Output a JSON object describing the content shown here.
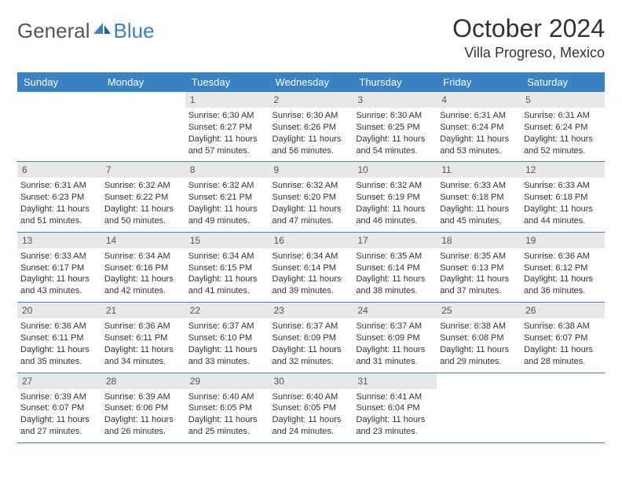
{
  "logo": {
    "text1": "General",
    "text2": "Blue"
  },
  "title": "October 2024",
  "location": "Villa Progreso, Mexico",
  "colors": {
    "header_bg": "#3b82c4",
    "header_text": "#ffffff",
    "daynum_bg": "#e8e8e8",
    "text": "#333333",
    "logo_gray": "#555555",
    "logo_blue": "#3b82c4",
    "border": "#3b82c4",
    "page_bg": "#ffffff"
  },
  "typography": {
    "title_fontsize": 32,
    "location_fontsize": 18,
    "logo_fontsize": 26,
    "header_fontsize": 13,
    "daynum_fontsize": 12,
    "body_fontsize": 11
  },
  "days_of_week": [
    "Sunday",
    "Monday",
    "Tuesday",
    "Wednesday",
    "Thursday",
    "Friday",
    "Saturday"
  ],
  "weeks": [
    [
      {
        "n": "",
        "lines": []
      },
      {
        "n": "",
        "lines": []
      },
      {
        "n": "1",
        "lines": [
          "Sunrise: 6:30 AM",
          "Sunset: 6:27 PM",
          "Daylight: 11 hours",
          "and 57 minutes."
        ]
      },
      {
        "n": "2",
        "lines": [
          "Sunrise: 6:30 AM",
          "Sunset: 6:26 PM",
          "Daylight: 11 hours",
          "and 56 minutes."
        ]
      },
      {
        "n": "3",
        "lines": [
          "Sunrise: 6:30 AM",
          "Sunset: 6:25 PM",
          "Daylight: 11 hours",
          "and 54 minutes."
        ]
      },
      {
        "n": "4",
        "lines": [
          "Sunrise: 6:31 AM",
          "Sunset: 6:24 PM",
          "Daylight: 11 hours",
          "and 53 minutes."
        ]
      },
      {
        "n": "5",
        "lines": [
          "Sunrise: 6:31 AM",
          "Sunset: 6:24 PM",
          "Daylight: 11 hours",
          "and 52 minutes."
        ]
      }
    ],
    [
      {
        "n": "6",
        "lines": [
          "Sunrise: 6:31 AM",
          "Sunset: 6:23 PM",
          "Daylight: 11 hours",
          "and 51 minutes."
        ]
      },
      {
        "n": "7",
        "lines": [
          "Sunrise: 6:32 AM",
          "Sunset: 6:22 PM",
          "Daylight: 11 hours",
          "and 50 minutes."
        ]
      },
      {
        "n": "8",
        "lines": [
          "Sunrise: 6:32 AM",
          "Sunset: 6:21 PM",
          "Daylight: 11 hours",
          "and 49 minutes."
        ]
      },
      {
        "n": "9",
        "lines": [
          "Sunrise: 6:32 AM",
          "Sunset: 6:20 PM",
          "Daylight: 11 hours",
          "and 47 minutes."
        ]
      },
      {
        "n": "10",
        "lines": [
          "Sunrise: 6:32 AM",
          "Sunset: 6:19 PM",
          "Daylight: 11 hours",
          "and 46 minutes."
        ]
      },
      {
        "n": "11",
        "lines": [
          "Sunrise: 6:33 AM",
          "Sunset: 6:18 PM",
          "Daylight: 11 hours",
          "and 45 minutes."
        ]
      },
      {
        "n": "12",
        "lines": [
          "Sunrise: 6:33 AM",
          "Sunset: 6:18 PM",
          "Daylight: 11 hours",
          "and 44 minutes."
        ]
      }
    ],
    [
      {
        "n": "13",
        "lines": [
          "Sunrise: 6:33 AM",
          "Sunset: 6:17 PM",
          "Daylight: 11 hours",
          "and 43 minutes."
        ]
      },
      {
        "n": "14",
        "lines": [
          "Sunrise: 6:34 AM",
          "Sunset: 6:16 PM",
          "Daylight: 11 hours",
          "and 42 minutes."
        ]
      },
      {
        "n": "15",
        "lines": [
          "Sunrise: 6:34 AM",
          "Sunset: 6:15 PM",
          "Daylight: 11 hours",
          "and 41 minutes."
        ]
      },
      {
        "n": "16",
        "lines": [
          "Sunrise: 6:34 AM",
          "Sunset: 6:14 PM",
          "Daylight: 11 hours",
          "and 39 minutes."
        ]
      },
      {
        "n": "17",
        "lines": [
          "Sunrise: 6:35 AM",
          "Sunset: 6:14 PM",
          "Daylight: 11 hours",
          "and 38 minutes."
        ]
      },
      {
        "n": "18",
        "lines": [
          "Sunrise: 6:35 AM",
          "Sunset: 6:13 PM",
          "Daylight: 11 hours",
          "and 37 minutes."
        ]
      },
      {
        "n": "19",
        "lines": [
          "Sunrise: 6:36 AM",
          "Sunset: 6:12 PM",
          "Daylight: 11 hours",
          "and 36 minutes."
        ]
      }
    ],
    [
      {
        "n": "20",
        "lines": [
          "Sunrise: 6:36 AM",
          "Sunset: 6:11 PM",
          "Daylight: 11 hours",
          "and 35 minutes."
        ]
      },
      {
        "n": "21",
        "lines": [
          "Sunrise: 6:36 AM",
          "Sunset: 6:11 PM",
          "Daylight: 11 hours",
          "and 34 minutes."
        ]
      },
      {
        "n": "22",
        "lines": [
          "Sunrise: 6:37 AM",
          "Sunset: 6:10 PM",
          "Daylight: 11 hours",
          "and 33 minutes."
        ]
      },
      {
        "n": "23",
        "lines": [
          "Sunrise: 6:37 AM",
          "Sunset: 6:09 PM",
          "Daylight: 11 hours",
          "and 32 minutes."
        ]
      },
      {
        "n": "24",
        "lines": [
          "Sunrise: 6:37 AM",
          "Sunset: 6:09 PM",
          "Daylight: 11 hours",
          "and 31 minutes."
        ]
      },
      {
        "n": "25",
        "lines": [
          "Sunrise: 6:38 AM",
          "Sunset: 6:08 PM",
          "Daylight: 11 hours",
          "and 29 minutes."
        ]
      },
      {
        "n": "26",
        "lines": [
          "Sunrise: 6:38 AM",
          "Sunset: 6:07 PM",
          "Daylight: 11 hours",
          "and 28 minutes."
        ]
      }
    ],
    [
      {
        "n": "27",
        "lines": [
          "Sunrise: 6:39 AM",
          "Sunset: 6:07 PM",
          "Daylight: 11 hours",
          "and 27 minutes."
        ]
      },
      {
        "n": "28",
        "lines": [
          "Sunrise: 6:39 AM",
          "Sunset: 6:06 PM",
          "Daylight: 11 hours",
          "and 26 minutes."
        ]
      },
      {
        "n": "29",
        "lines": [
          "Sunrise: 6:40 AM",
          "Sunset: 6:05 PM",
          "Daylight: 11 hours",
          "and 25 minutes."
        ]
      },
      {
        "n": "30",
        "lines": [
          "Sunrise: 6:40 AM",
          "Sunset: 6:05 PM",
          "Daylight: 11 hours",
          "and 24 minutes."
        ]
      },
      {
        "n": "31",
        "lines": [
          "Sunrise: 6:41 AM",
          "Sunset: 6:04 PM",
          "Daylight: 11 hours",
          "and 23 minutes."
        ]
      },
      {
        "n": "",
        "lines": []
      },
      {
        "n": "",
        "lines": []
      }
    ]
  ]
}
